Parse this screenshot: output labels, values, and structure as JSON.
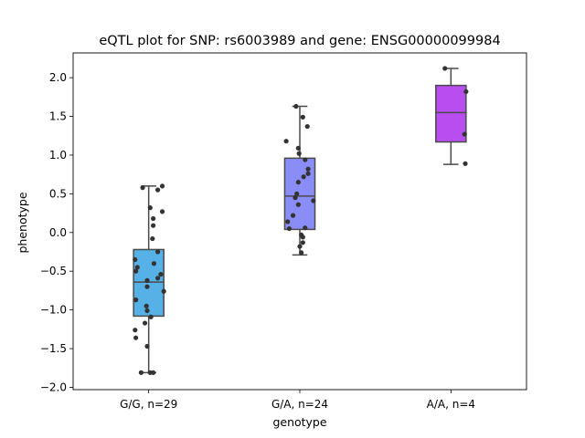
{
  "chart_data": {
    "type": "box",
    "title": "eQTL plot for SNP: rs6003989 and gene: ENSG00000099984",
    "xlabel": "genotype",
    "ylabel": "phenotype",
    "ylim": [
      -2.03,
      2.32
    ],
    "yticks": [
      2.0,
      1.5,
      1.0,
      0.5,
      0.0,
      -0.5,
      -1.0,
      -1.5,
      -2.0
    ],
    "ytick_labels": [
      "2.0",
      "1.5",
      "1.0",
      "0.5",
      "0.0",
      "−0.5",
      "−1.0",
      "−1.5",
      "−2.0"
    ],
    "categories": [
      "G/G, n=29",
      "G/A, n=24",
      "A/A, n=4"
    ],
    "boxes": [
      {
        "color": "#56b1e7",
        "whisker_high": 0.6,
        "q3": -0.22,
        "median": -0.64,
        "q1": -1.08,
        "whisker_low": -1.81
      },
      {
        "color": "#8a8df5",
        "whisker_high": 1.63,
        "q3": 0.96,
        "median": 0.47,
        "q1": 0.04,
        "whisker_low": -0.29
      },
      {
        "color": "#b94ef0",
        "whisker_high": 2.12,
        "q3": 1.9,
        "median": 1.55,
        "q1": 1.17,
        "whisker_low": 0.88
      }
    ],
    "points": [
      [
        [
          -0.08,
          0.58
        ],
        [
          0.18,
          0.6
        ],
        [
          0.12,
          0.55
        ],
        [
          0.02,
          0.32
        ],
        [
          0.18,
          0.27
        ],
        [
          0.06,
          0.18
        ],
        [
          0.06,
          0.09
        ],
        [
          0.05,
          -0.08
        ],
        [
          0.12,
          -0.25
        ],
        [
          -0.18,
          -0.35
        ],
        [
          -0.15,
          -0.45
        ],
        [
          -0.17,
          -0.5
        ],
        [
          0.07,
          -0.4
        ],
        [
          0.16,
          -0.54
        ],
        [
          0.12,
          -0.59
        ],
        [
          -0.02,
          -0.62
        ],
        [
          -0.02,
          -0.7
        ],
        [
          0.2,
          -0.76
        ],
        [
          -0.17,
          -0.87
        ],
        [
          -0.03,
          -0.95
        ],
        [
          -0.02,
          -1.01
        ],
        [
          0.03,
          -1.09
        ],
        [
          -0.05,
          -1.17
        ],
        [
          -0.18,
          -1.26
        ],
        [
          -0.17,
          -1.36
        ],
        [
          -0.02,
          -1.47
        ],
        [
          -0.1,
          -1.81
        ],
        [
          0.02,
          -1.81
        ],
        [
          0.06,
          -1.81
        ]
      ],
      [
        [
          -0.05,
          1.63
        ],
        [
          0.04,
          1.49
        ],
        [
          0.1,
          1.37
        ],
        [
          -0.18,
          1.18
        ],
        [
          -0.02,
          1.09
        ],
        [
          -0.01,
          1.02
        ],
        [
          0.07,
          0.94
        ],
        [
          0.11,
          0.82
        ],
        [
          0.11,
          0.76
        ],
        [
          0.05,
          0.72
        ],
        [
          -0.02,
          0.65
        ],
        [
          -0.04,
          0.5
        ],
        [
          -0.06,
          0.45
        ],
        [
          0.18,
          0.41
        ],
        [
          -0.02,
          0.36
        ],
        [
          -0.09,
          0.22
        ],
        [
          -0.16,
          0.14
        ],
        [
          -0.14,
          0.05
        ],
        [
          0.07,
          0.06
        ],
        [
          0.02,
          -0.03
        ],
        [
          0.04,
          -0.06
        ],
        [
          0.04,
          -0.13
        ],
        [
          0.0,
          -0.18
        ],
        [
          0.02,
          -0.26
        ]
      ],
      [
        [
          -0.08,
          2.12
        ],
        [
          0.2,
          1.82
        ],
        [
          0.18,
          1.27
        ],
        [
          0.19,
          0.89
        ]
      ]
    ]
  }
}
